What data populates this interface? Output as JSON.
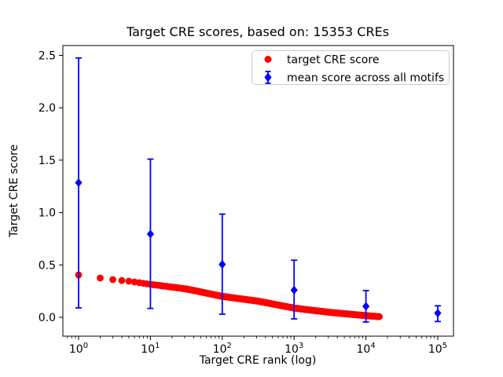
{
  "chart_data": {
    "type": "scatter",
    "title": "Target CRE scores, based on: 15353 CREs",
    "xlabel": "Target CRE rank (log)",
    "ylabel": "Target CRE score",
    "x_scale": "log",
    "xlim": [
      0.6,
      166000
    ],
    "ylim": [
      -0.18,
      2.6
    ],
    "x_tick_base": "10",
    "x_tick_exponents": [
      0,
      1,
      2,
      3,
      4,
      5
    ],
    "y_ticks": [
      "0.0",
      "0.5",
      "1.0",
      "1.5",
      "2.0",
      "2.5"
    ],
    "grid": false,
    "legend_position": "upper right",
    "series": [
      {
        "name": "target CRE score",
        "plot_type": "scatter",
        "marker": "circle",
        "color": "#ff0000",
        "n_points": 15353,
        "rank_score_profile": [
          [
            1,
            0.405
          ],
          [
            2,
            0.375
          ],
          [
            3,
            0.36
          ],
          [
            5,
            0.345
          ],
          [
            10,
            0.315
          ],
          [
            32,
            0.27
          ],
          [
            100,
            0.2
          ],
          [
            316,
            0.154
          ],
          [
            1000,
            0.088
          ],
          [
            3162,
            0.047
          ],
          [
            10000,
            0.016
          ],
          [
            15353,
            0.006
          ]
        ]
      },
      {
        "name": "mean score across all motifs",
        "plot_type": "errorbar",
        "marker": "diamond",
        "color": "#0000ff",
        "x": [
          1,
          10,
          100,
          1000,
          10000,
          100000
        ],
        "mean": [
          1.285,
          0.795,
          0.505,
          0.26,
          0.105,
          0.04
        ],
        "err_hi": [
          2.475,
          1.51,
          0.985,
          0.545,
          0.255,
          0.11
        ],
        "err_lo": [
          0.09,
          0.085,
          0.03,
          -0.015,
          -0.045,
          -0.04
        ]
      }
    ]
  },
  "style": {
    "axes_edge_color": "#000000",
    "legend_edge_color": "#cccccc",
    "background": "#ffffff"
  }
}
